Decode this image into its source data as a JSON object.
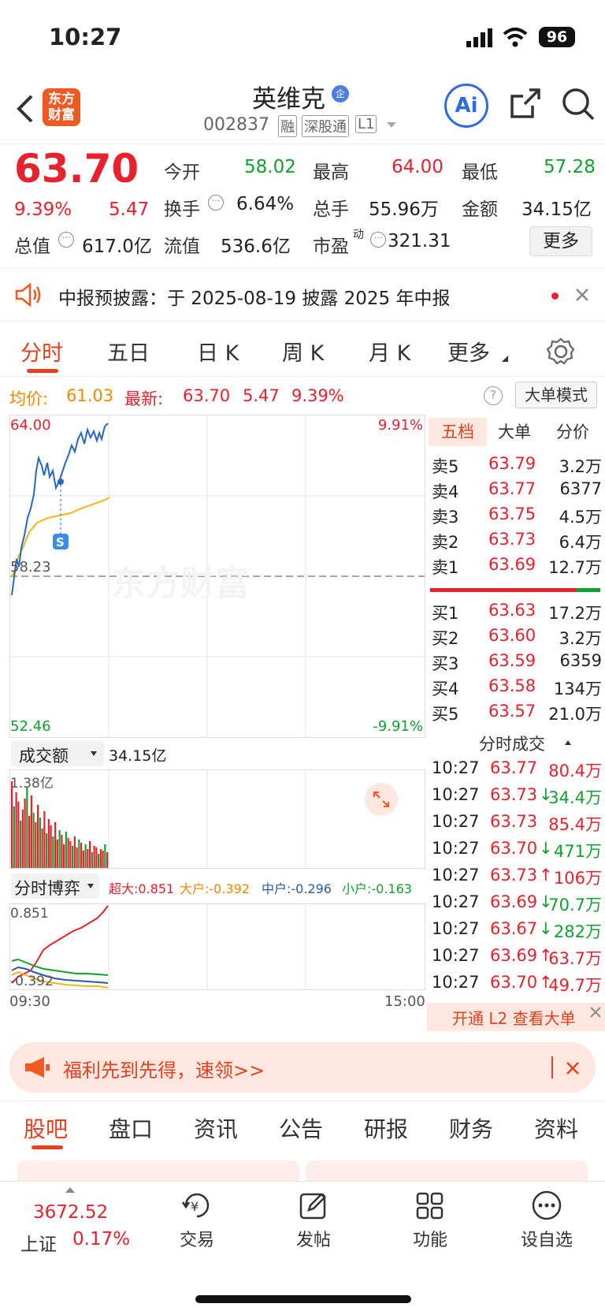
{
  "status_bar": {
    "time": "10:27",
    "battery": "96"
  },
  "header": {
    "stock_name": "英维克",
    "badge": "企",
    "code": "002837",
    "tags": [
      "融",
      "深股通",
      "L1"
    ],
    "ai_label": "Ai"
  },
  "quote": {
    "price": "63.70",
    "change_pct": "9.39%",
    "change": "5.47",
    "open_label": "今开",
    "open": "58.02",
    "high_label": "最高",
    "high": "64.00",
    "low_label": "最低",
    "low": "57.28",
    "turnover_label": "换手",
    "turnover": "6.64%",
    "volume_label": "总手",
    "volume": "55.96万",
    "amount_label": "金额",
    "amount": "34.15亿",
    "mktcap_label": "总值",
    "mktcap": "617.0亿",
    "float_label": "流值",
    "float": "536.6亿",
    "pe_label": "市盈",
    "pe_sup": "动",
    "pe": "321.31",
    "more": "更多"
  },
  "notice": {
    "text": "中报预披露：于 2025-08-19 披露 2025 年中报"
  },
  "ktabs": [
    "分时",
    "五日",
    "日 K",
    "周 K",
    "月 K",
    "更多"
  ],
  "infoline": {
    "avg_label": "均价:",
    "avg": "61.03",
    "last_label": "最新:",
    "last": "63.70",
    "chg": "5.47",
    "pct": "9.39%",
    "mode": "大单模式"
  },
  "chart": {
    "top_price": "64.00",
    "mid_price": "58.23",
    "bottom_price": "52.46",
    "top_pct": "9.91%",
    "bottom_pct": "-9.91%",
    "watermark": "东方财富",
    "marker": "S",
    "colors": {
      "price": "#2a66c9",
      "avg": "#f5b51e",
      "up": "#e8222c",
      "down": "#12a02f"
    }
  },
  "orderbook": {
    "tabs": [
      "五档",
      "大单",
      "分价"
    ],
    "asks": [
      {
        "label": "卖5",
        "price": "63.79",
        "vol": "3.2万"
      },
      {
        "label": "卖4",
        "price": "63.77",
        "vol": "6377"
      },
      {
        "label": "卖3",
        "price": "63.75",
        "vol": "4.5万"
      },
      {
        "label": "卖2",
        "price": "63.73",
        "vol": "6.4万"
      },
      {
        "label": "卖1",
        "price": "63.69",
        "vol": "12.7万"
      }
    ],
    "bids": [
      {
        "label": "买1",
        "price": "63.63",
        "vol": "17.2万"
      },
      {
        "label": "买2",
        "price": "63.60",
        "vol": "3.2万"
      },
      {
        "label": "买3",
        "price": "63.59",
        "vol": "6359"
      },
      {
        "label": "买4",
        "price": "63.58",
        "vol": "134万"
      },
      {
        "label": "买5",
        "price": "63.57",
        "vol": "21.0万"
      }
    ]
  },
  "trades": {
    "title": "分时成交",
    "rows": [
      {
        "time": "10:27",
        "price": "63.77",
        "vol": "80.4万",
        "arrow": ""
      },
      {
        "time": "10:27",
        "price": "63.73",
        "vol": "34.4万",
        "arrow": "↓"
      },
      {
        "time": "10:27",
        "price": "63.73",
        "vol": "85.4万",
        "arrow": ""
      },
      {
        "time": "10:27",
        "price": "63.70",
        "vol": "471万",
        "arrow": "↓"
      },
      {
        "time": "10:27",
        "price": "63.73",
        "vol": "106万",
        "arrow": "↑"
      },
      {
        "time": "10:27",
        "price": "63.69",
        "vol": "70.7万",
        "arrow": "↓"
      },
      {
        "time": "10:27",
        "price": "63.67",
        "vol": "282万",
        "arrow": "↓"
      },
      {
        "time": "10:27",
        "price": "63.69",
        "vol": "63.7万",
        "arrow": "↑"
      },
      {
        "time": "10:27",
        "price": "63.70",
        "vol": "49.7万",
        "arrow": "↑"
      }
    ],
    "l2": "开通 L2 查看大单"
  },
  "volume": {
    "label": "成交额",
    "value": "34.15亿",
    "max": "1.38亿"
  },
  "game": {
    "label": "分时博弈",
    "super": "超大:0.851",
    "big": "大户:-0.392",
    "mid": "中户:-0.296",
    "small": "小户:-0.163",
    "top": "0.851",
    "bottom": "-0.392",
    "t_start": "09:30",
    "t_end": "15:00"
  },
  "welfare": {
    "text": "福利先到先得，速领>>"
  },
  "btabs": [
    "股吧",
    "盘口",
    "资讯",
    "公告",
    "研报",
    "财务",
    "资料"
  ],
  "bottom": {
    "index_value": "3672.52",
    "index_name": "上证",
    "index_pct": "0.17%",
    "nav": [
      "交易",
      "发帖",
      "功能",
      "设自选"
    ]
  }
}
